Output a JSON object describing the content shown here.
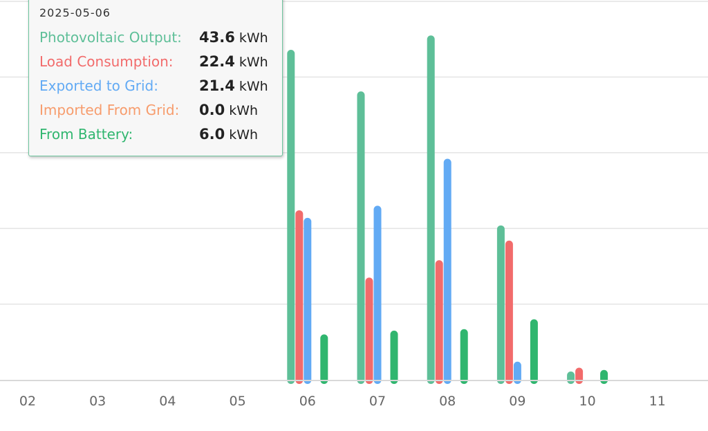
{
  "chart_data": {
    "type": "bar",
    "categories": [
      "02",
      "03",
      "04",
      "05",
      "06",
      "07",
      "08",
      "09",
      "10",
      "11"
    ],
    "series": [
      {
        "name": "Photovoltaic Output",
        "color": "#5ebf98",
        "values": [
          0,
          0,
          0,
          0,
          43.6,
          38.1,
          45.5,
          20.4,
          0.9,
          0
        ]
      },
      {
        "name": "Load Consumption",
        "color": "#f26b6b",
        "values": [
          0,
          0,
          0,
          0,
          22.4,
          13.5,
          15.8,
          18.4,
          1.6,
          0
        ]
      },
      {
        "name": "Exported to Grid",
        "color": "#62aaf4",
        "values": [
          0,
          0,
          0,
          0,
          21.4,
          23.0,
          29.2,
          2.4,
          0,
          0
        ]
      },
      {
        "name": "Imported From Grid",
        "color": "#f79c6c",
        "values": [
          0,
          0,
          0,
          0,
          0.0,
          0,
          0,
          0,
          0,
          0
        ]
      },
      {
        "name": "From Battery",
        "color": "#30b66f",
        "values": [
          0,
          0,
          0,
          0,
          6.0,
          6.5,
          6.7,
          8.0,
          1.3,
          0
        ]
      }
    ],
    "ylim": [
      0,
      50
    ],
    "grid": true
  },
  "tooltip": {
    "date": "2025-05-06",
    "rows": [
      {
        "label": "Photovoltaic Output:",
        "value": "43.6",
        "unit": "kWh",
        "color": "#5ebf98"
      },
      {
        "label": "Load Consumption:",
        "value": "22.4",
        "unit": "kWh",
        "color": "#f26b6b"
      },
      {
        "label": "Exported to Grid:",
        "value": "21.4",
        "unit": "kWh",
        "color": "#62aaf4"
      },
      {
        "label": "Imported From Grid:",
        "value": "0.0",
        "unit": "kWh",
        "color": "#f79c6c"
      },
      {
        "label": "From Battery:",
        "value": "6.0",
        "unit": "kWh",
        "color": "#30b66f"
      }
    ]
  }
}
